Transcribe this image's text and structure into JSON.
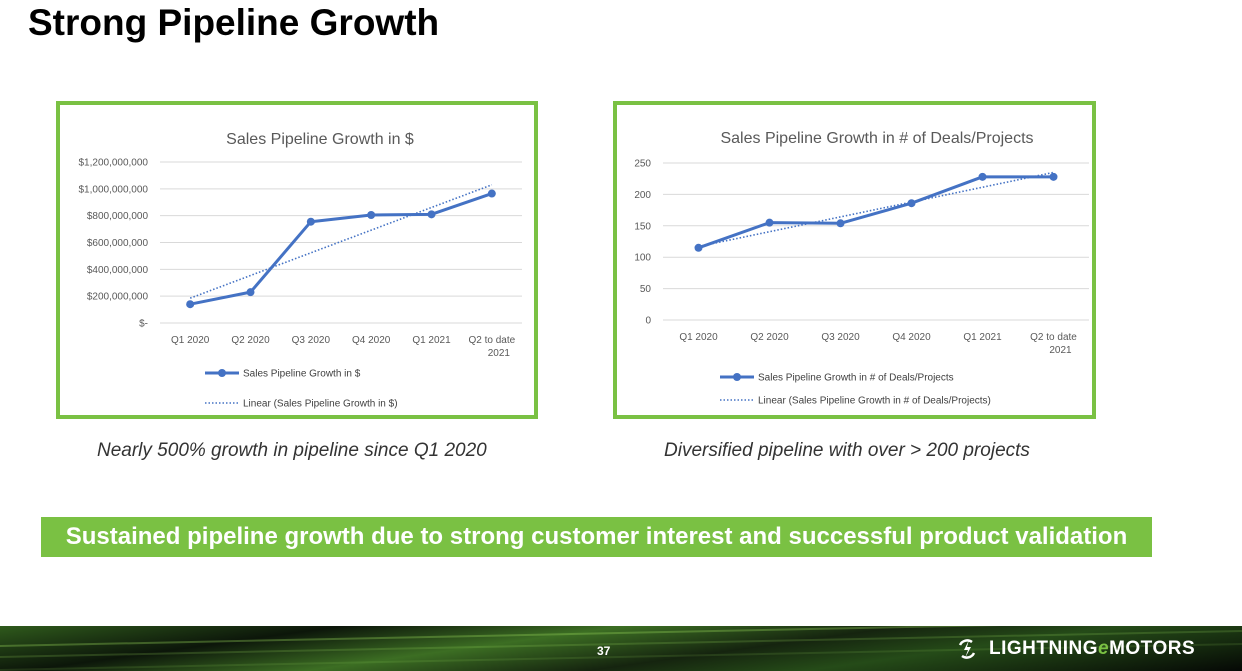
{
  "slide": {
    "title": "Strong Pipeline Growth",
    "caption_left": "Nearly 500% growth in pipeline since Q1 2020",
    "caption_right": "Diversified pipeline with over > 200 projects",
    "banner": "Sustained pipeline growth due to strong customer interest and successful product validation",
    "page_number": "37",
    "logo": {
      "part1": "LIGHTNING ",
      "e": "e",
      "part2": "MOTORS"
    }
  },
  "colors": {
    "accent_green": "#7AC143",
    "series_blue": "#4472C4"
  },
  "chart_data": [
    {
      "type": "line",
      "title": "Sales Pipeline Growth in $",
      "categories": [
        "Q1 2020",
        "Q2 2020",
        "Q3 2020",
        "Q4 2020",
        "Q1 2021",
        "Q2 to date|2021"
      ],
      "series": [
        {
          "name": "Sales Pipeline Growth in $",
          "values": [
            140000000,
            230000000,
            755000000,
            805000000,
            810000000,
            965000000
          ]
        }
      ],
      "trendline": {
        "name": "Linear (Sales Pipeline Growth in $)",
        "start": 185000000,
        "end": 1030000000
      },
      "ylim": [
        0,
        1200000000
      ],
      "yticks": [
        0,
        200000000,
        400000000,
        600000000,
        800000000,
        1000000000,
        1200000000
      ],
      "ytick_labels": [
        "$-",
        "$200,000,000",
        "$400,000,000",
        "$600,000,000",
        "$800,000,000",
        "$1,000,000,000",
        "$1,200,000,000"
      ],
      "xlabel": "",
      "ylabel": "",
      "grid": true,
      "legend": "bottom"
    },
    {
      "type": "line",
      "title": "Sales Pipeline Growth in # of Deals/Projects",
      "categories": [
        "Q1 2020",
        "Q2 2020",
        "Q3 2020",
        "Q4 2020",
        "Q1 2021",
        "Q2 to date|2021"
      ],
      "series": [
        {
          "name": "Sales Pipeline Growth in # of Deals/Projects",
          "values": [
            115,
            155,
            154,
            186,
            228,
            228
          ]
        }
      ],
      "trendline": {
        "name": "Linear (Sales Pipeline Growth in # of Deals/Projects)",
        "start": 117,
        "end": 235
      },
      "ylim": [
        0,
        250
      ],
      "yticks": [
        0,
        50,
        100,
        150,
        200,
        250
      ],
      "ytick_labels": [
        "0",
        "50",
        "100",
        "150",
        "200",
        "250"
      ],
      "xlabel": "",
      "ylabel": "",
      "grid": true,
      "legend": "bottom"
    }
  ]
}
